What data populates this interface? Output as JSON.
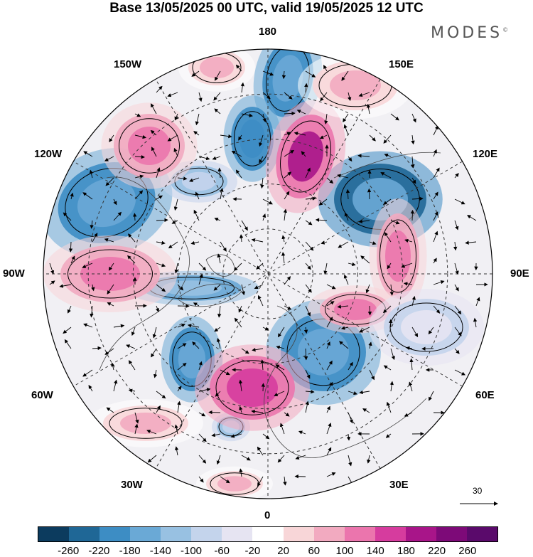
{
  "header": {
    "title": "Base 13/05/2025 00 UTC, valid 19/05/2025 12 UTC",
    "brand": "MODES"
  },
  "map": {
    "projection": "north-polar-stereographic",
    "longitude_labels": {
      "top": "180",
      "bottom": "0",
      "left": "90W",
      "right": "90E",
      "upper_left_1": "150W",
      "upper_left_2": "120W",
      "upper_right_1": "150E",
      "upper_right_2": "120E",
      "lower_left_1": "60W",
      "lower_left_2": "30W",
      "lower_right_1": "60E",
      "lower_right_2": "30E"
    },
    "reference_vector": {
      "label": "30"
    }
  },
  "colorbar": {
    "ticks": [
      "-260",
      "-220",
      "-180",
      "-140",
      "-100",
      "-60",
      "-20",
      "20",
      "60",
      "100",
      "140",
      "180",
      "220",
      "260"
    ],
    "colors": [
      "#0c3b5e",
      "#1f6796",
      "#3d8dc4",
      "#6aa9d6",
      "#98c1e2",
      "#c4d4ec",
      "#e6e4f2",
      "#ffffff",
      "#f8d6d8",
      "#f2aac0",
      "#eb75ad",
      "#d63c9e",
      "#a81589",
      "#7d0a78",
      "#5a0a6b"
    ]
  }
}
